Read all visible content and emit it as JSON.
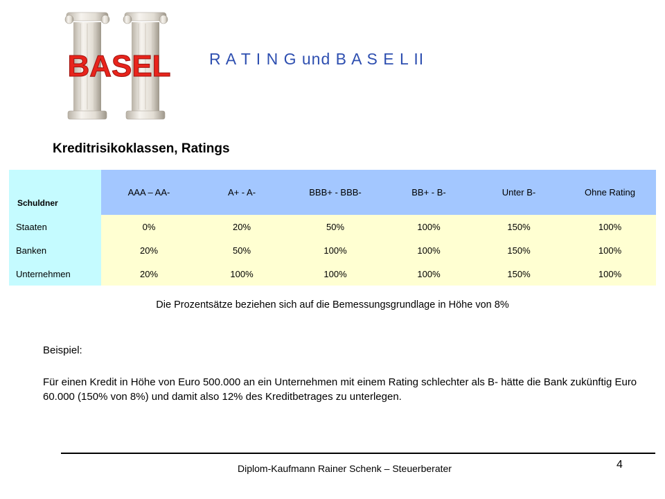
{
  "logo": {
    "word": "BASEL"
  },
  "header": {
    "title": "R A T I N G und B A S E L  II"
  },
  "section_title": "Kreditrisikoklassen, Ratings",
  "table": {
    "corner": "Schuldner",
    "columns": [
      "AAA – AA-",
      "A+ - A-",
      "BBB+ - BBB-",
      "BB+ - B-",
      "Unter B-",
      "Ohne Rating"
    ],
    "rows": [
      {
        "label": "Staaten",
        "values": [
          "0%",
          "20%",
          "50%",
          "100%",
          "150%",
          "100%"
        ]
      },
      {
        "label": "Banken",
        "values": [
          "20%",
          "50%",
          "100%",
          "100%",
          "150%",
          "100%"
        ]
      },
      {
        "label": "Unternehmen",
        "values": [
          "20%",
          "100%",
          "100%",
          "100%",
          "150%",
          "100%"
        ]
      }
    ]
  },
  "note": "Die Prozentsätze beziehen sich auf die Bemessungsgrundlage in Höhe von 8%",
  "example": {
    "heading": "Beispiel:",
    "text": "Für einen Kredit in Höhe von Euro 500.000 an ein Unternehmen mit einem Rating schlechter als B- hätte die Bank zukünftig Euro 60.000 (150% von 8%) und damit also 12% des Kreditbetrages zu unterlegen."
  },
  "footer": {
    "text": "Diplom-Kaufmann Rainer Schenk – Steuerberater",
    "page": "4"
  },
  "colors": {
    "title": "#2e4fb0",
    "logo_red": "#e8241c",
    "header_blue": "#a3c7ff",
    "label_cyan": "#c5fbff",
    "cell_yellow": "#ffffd2"
  }
}
